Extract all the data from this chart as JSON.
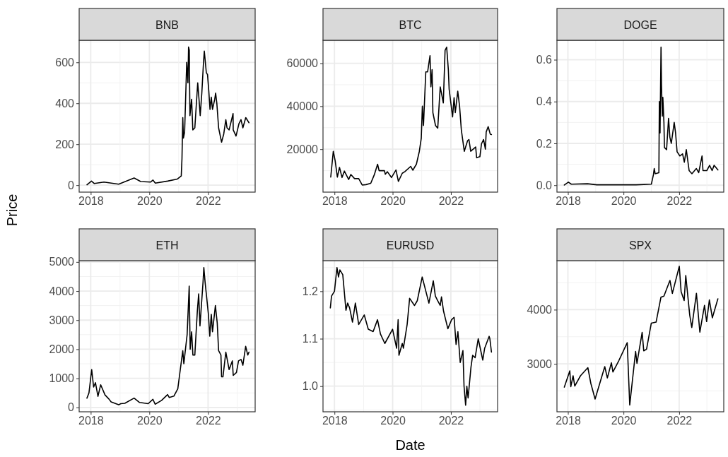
{
  "chart_data": [
    {
      "type": "line",
      "title": "BNB",
      "ylabel": "Price",
      "color": "#000000",
      "grid": true,
      "xlim": [
        "2017-08-10",
        "2023-08-10"
      ],
      "xticks": [
        "2018",
        "2020",
        "2022"
      ],
      "ylim": [
        -34,
        708
      ],
      "yticks": [
        0,
        200,
        400,
        600
      ],
      "x": [
        "2017-11-15",
        "2018-01-10",
        "2018-02-15",
        "2018-06-15",
        "2018-12-15",
        "2019-06-25",
        "2019-09-15",
        "2020-01-15",
        "2020-02-15",
        "2020-03-15",
        "2020-08-15",
        "2020-12-15",
        "2021-02-01",
        "2021-02-10",
        "2021-02-20",
        "2021-02-28",
        "2021-03-15",
        "2021-04-10",
        "2021-04-25",
        "2021-05-03",
        "2021-05-12",
        "2021-05-20",
        "2021-06-10",
        "2021-06-25",
        "2021-07-20",
        "2021-08-25",
        "2021-09-10",
        "2021-09-25",
        "2021-10-15",
        "2021-11-05",
        "2021-11-15",
        "2021-12-10",
        "2021-12-25",
        "2022-01-10",
        "2022-01-25",
        "2022-02-10",
        "2022-02-25",
        "2022-03-25",
        "2022-04-05",
        "2022-04-20",
        "2022-05-12",
        "2022-06-18",
        "2022-07-15",
        "2022-08-10",
        "2022-08-25",
        "2022-09-20",
        "2022-11-08",
        "2022-11-10",
        "2022-12-15",
        "2023-01-20",
        "2023-02-15",
        "2023-03-10",
        "2023-04-15",
        "2023-05-25"
      ],
      "values": [
        2,
        20,
        8,
        15,
        5,
        35,
        18,
        15,
        25,
        10,
        20,
        30,
        45,
        130,
        330,
        230,
        260,
        600,
        500,
        675,
        660,
        340,
        420,
        270,
        280,
        500,
        420,
        340,
        450,
        600,
        655,
        550,
        540,
        460,
        370,
        430,
        370,
        420,
        450,
        400,
        280,
        210,
        250,
        320,
        280,
        270,
        350,
        270,
        240,
        300,
        320,
        280,
        330,
        305
      ]
    },
    {
      "type": "line",
      "title": "BTC",
      "color": "#000000",
      "grid": true,
      "xlim": [
        "2017-08-10",
        "2023-08-10"
      ],
      "xticks": [
        "2018",
        "2020",
        "2022"
      ],
      "ylim": [
        0,
        70700
      ],
      "yticks": [
        20000,
        40000,
        60000
      ],
      "x": [
        "2017-11-15",
        "2017-12-17",
        "2018-01-10",
        "2018-02-06",
        "2018-03-05",
        "2018-04-06",
        "2018-05-05",
        "2018-06-28",
        "2018-07-25",
        "2018-09-10",
        "2018-11-01",
        "2018-12-15",
        "2019-02-01",
        "2019-04-01",
        "2019-05-15",
        "2019-06-26",
        "2019-07-15",
        "2019-09-20",
        "2019-10-01",
        "2019-10-27",
        "2019-12-17",
        "2020-02-12",
        "2020-03-13",
        "2020-05-01",
        "2020-06-01",
        "2020-08-15",
        "2020-09-10",
        "2020-10-25",
        "2020-12-01",
        "2020-12-25",
        "2021-01-08",
        "2021-01-22",
        "2021-02-20",
        "2021-03-15",
        "2021-04-14",
        "2021-04-25",
        "2021-05-10",
        "2021-05-20",
        "2021-06-22",
        "2021-07-20",
        "2021-08-20",
        "2021-09-10",
        "2021-09-28",
        "2021-10-20",
        "2021-11-09",
        "2021-11-30",
        "2021-12-10",
        "2022-01-22",
        "2022-02-10",
        "2022-02-25",
        "2022-03-28",
        "2022-04-20",
        "2022-05-12",
        "2022-06-18",
        "2022-07-30",
        "2022-08-15",
        "2022-09-07",
        "2022-11-08",
        "2022-11-20",
        "2022-12-31",
        "2023-01-20",
        "2023-02-15",
        "2023-03-10",
        "2023-03-20",
        "2023-04-14",
        "2023-05-10",
        "2023-05-25"
      ],
      "values": [
        7000,
        19000,
        14500,
        7000,
        11500,
        6800,
        9800,
        5900,
        8200,
        6300,
        6300,
        3300,
        3500,
        4100,
        8000,
        13000,
        10000,
        10000,
        8300,
        9500,
        6800,
        10300,
        5000,
        8800,
        9500,
        12000,
        10200,
        13000,
        19000,
        25000,
        40000,
        31000,
        56000,
        56000,
        63500,
        49000,
        57000,
        37000,
        31000,
        29800,
        49000,
        45000,
        41500,
        66000,
        67500,
        57000,
        48000,
        35000,
        44000,
        37000,
        47000,
        40000,
        29000,
        19000,
        24000,
        24500,
        19000,
        21000,
        16000,
        16500,
        22500,
        24500,
        20000,
        28000,
        30500,
        27000,
        26800
      ]
    },
    {
      "type": "line",
      "title": "DOGE",
      "color": "#000000",
      "grid": true,
      "xlim": [
        "2017-08-10",
        "2023-08-10"
      ],
      "xticks": [
        "2018",
        "2020",
        "2022"
      ],
      "ylim": [
        -0.033,
        0.693
      ],
      "yticks": [
        {
          "value": 0,
          "label": "0.0"
        },
        0.2,
        0.4,
        0.6
      ],
      "x": [
        "2017-11-15",
        "2018-01-07",
        "2018-02-15",
        "2018-09-15",
        "2019-01-15",
        "2020-06-15",
        "2021-01-01",
        "2021-01-28",
        "2021-02-08",
        "2021-02-20",
        "2021-04-10",
        "2021-04-16",
        "2021-04-25",
        "2021-05-08",
        "2021-05-14",
        "2021-05-25",
        "2021-06-01",
        "2021-06-15",
        "2021-06-22",
        "2021-07-20",
        "2021-08-15",
        "2021-09-01",
        "2021-09-20",
        "2021-10-28",
        "2021-11-15",
        "2021-12-05",
        "2022-01-10",
        "2022-02-15",
        "2022-03-10",
        "2022-04-05",
        "2022-05-12",
        "2022-06-18",
        "2022-08-15",
        "2022-09-15",
        "2022-10-29",
        "2022-11-10",
        "2022-12-30",
        "2023-02-05",
        "2023-03-10",
        "2023-04-05",
        "2023-05-25"
      ],
      "values": [
        0.001,
        0.015,
        0.005,
        0.007,
        0.002,
        0.002,
        0.005,
        0.05,
        0.08,
        0.055,
        0.06,
        0.4,
        0.25,
        0.66,
        0.48,
        0.33,
        0.42,
        0.3,
        0.18,
        0.17,
        0.32,
        0.23,
        0.2,
        0.3,
        0.25,
        0.16,
        0.14,
        0.15,
        0.11,
        0.17,
        0.07,
        0.055,
        0.08,
        0.06,
        0.14,
        0.07,
        0.07,
        0.095,
        0.07,
        0.095,
        0.073
      ]
    },
    {
      "type": "line",
      "title": "ETH",
      "color": "#000000",
      "grid": true,
      "xlim": [
        "2017-08-10",
        "2023-08-10"
      ],
      "xticks": [
        "2018",
        "2020",
        "2022"
      ],
      "ylim": [
        -150,
        5045
      ],
      "yticks": [
        0,
        1000,
        2000,
        3000,
        4000,
        5000
      ],
      "x": [
        "2017-11-15",
        "2017-12-10",
        "2018-01-13",
        "2018-02-06",
        "2018-03-01",
        "2018-04-01",
        "2018-05-05",
        "2018-06-28",
        "2018-08-15",
        "2018-09-12",
        "2018-12-15",
        "2019-01-10",
        "2019-03-01",
        "2019-06-25",
        "2019-09-01",
        "2019-12-17",
        "2020-02-14",
        "2020-03-13",
        "2020-06-01",
        "2020-08-15",
        "2020-09-05",
        "2020-11-01",
        "2020-12-20",
        "2021-01-20",
        "2021-02-20",
        "2021-03-05",
        "2021-04-15",
        "2021-05-11",
        "2021-05-23",
        "2021-06-10",
        "2021-06-26",
        "2021-07-20",
        "2021-08-20",
        "2021-09-06",
        "2021-09-22",
        "2021-10-30",
        "2021-11-09",
        "2021-11-25",
        "2021-12-10",
        "2022-01-05",
        "2022-01-22",
        "2022-02-10",
        "2022-02-25",
        "2022-04-02",
        "2022-04-25",
        "2022-05-12",
        "2022-06-10",
        "2022-06-18",
        "2022-07-05",
        "2022-08-10",
        "2022-09-20",
        "2022-10-30",
        "2022-11-10",
        "2022-12-20",
        "2023-01-15",
        "2023-02-15",
        "2023-03-10",
        "2023-04-14",
        "2023-05-10",
        "2023-05-25"
      ],
      "values": [
        320,
        500,
        1300,
        700,
        850,
        380,
        780,
        430,
        290,
        190,
        90,
        130,
        140,
        320,
        170,
        130,
        280,
        110,
        240,
        440,
        340,
        390,
        640,
        1300,
        1950,
        1500,
        2500,
        4170,
        2000,
        2600,
        1800,
        1800,
        3300,
        3900,
        2800,
        4300,
        4810,
        4300,
        3900,
        3200,
        2450,
        3200,
        2600,
        3500,
        2900,
        1950,
        1800,
        1050,
        1050,
        1900,
        1300,
        1600,
        1100,
        1200,
        1600,
        1650,
        1450,
        2100,
        1800,
        1900
      ]
    },
    {
      "type": "line",
      "title": "EURUSD",
      "xlabel": "Date",
      "color": "#000000",
      "grid": true,
      "xlim": [
        "2017-08-10",
        "2023-08-10"
      ],
      "xticks": [
        "2018",
        "2020",
        "2022"
      ],
      "ylim": [
        0.946,
        1.2645
      ],
      "yticks": [
        {
          "value": 1,
          "label": "1.0"
        },
        1.1,
        1.2
      ],
      "x": [
        "2017-11-10",
        "2017-11-25",
        "2018-01-01",
        "2018-02-01",
        "2018-02-20",
        "2018-03-10",
        "2018-04-15",
        "2018-05-25",
        "2018-06-15",
        "2018-07-10",
        "2018-08-15",
        "2018-09-20",
        "2018-11-01",
        "2019-01-10",
        "2019-03-01",
        "2019-05-01",
        "2019-06-25",
        "2019-08-01",
        "2019-09-25",
        "2019-12-31",
        "2020-02-20",
        "2020-03-10",
        "2020-03-20",
        "2020-05-01",
        "2020-05-15",
        "2020-07-01",
        "2020-08-01",
        "2020-10-01",
        "2020-11-05",
        "2021-01-06",
        "2021-03-31",
        "2021-05-25",
        "2021-06-20",
        "2021-07-20",
        "2021-08-20",
        "2021-09-05",
        "2021-10-01",
        "2021-11-24",
        "2022-01-10",
        "2022-02-10",
        "2022-03-07",
        "2022-03-30",
        "2022-04-28",
        "2022-06-01",
        "2022-06-15",
        "2022-07-05",
        "2022-07-20",
        "2022-08-05",
        "2022-09-10",
        "2022-10-01",
        "2022-11-01",
        "2022-12-10",
        "2023-02-05",
        "2023-03-01",
        "2023-04-26",
        "2023-05-05",
        "2023-05-25"
      ],
      "values": [
        1.165,
        1.19,
        1.2,
        1.25,
        1.23,
        1.245,
        1.235,
        1.16,
        1.175,
        1.165,
        1.135,
        1.175,
        1.13,
        1.15,
        1.12,
        1.115,
        1.14,
        1.11,
        1.09,
        1.12,
        1.08,
        1.14,
        1.065,
        1.09,
        1.08,
        1.13,
        1.185,
        1.17,
        1.18,
        1.23,
        1.175,
        1.222,
        1.19,
        1.18,
        1.17,
        1.188,
        1.158,
        1.121,
        1.14,
        1.145,
        1.088,
        1.115,
        1.05,
        1.075,
        1.0,
        0.96,
        1.0,
        0.975,
        1.04,
        1.065,
        1.06,
        1.1,
        1.055,
        1.08,
        1.105,
        1.1,
        1.072
      ]
    },
    {
      "type": "line",
      "title": "SPX",
      "color": "#000000",
      "grid": true,
      "xlim": [
        "2017-08-10",
        "2023-08-10"
      ],
      "xticks": [
        "2018",
        "2020",
        "2022"
      ],
      "ylim": [
        2115,
        4905
      ],
      "yticks": [
        3000,
        4000
      ],
      "x": [
        "2017-11-15",
        "2018-01-26",
        "2018-02-08",
        "2018-03-10",
        "2018-04-01",
        "2018-06-15",
        "2018-09-20",
        "2018-10-29",
        "2018-12-24",
        "2019-04-30",
        "2019-06-03",
        "2019-07-26",
        "2019-08-15",
        "2019-11-01",
        "2020-02-19",
        "2020-03-23",
        "2020-06-08",
        "2020-06-26",
        "2020-09-02",
        "2020-09-23",
        "2020-10-30",
        "2020-12-31",
        "2021-03-04",
        "2021-05-07",
        "2021-06-15",
        "2021-09-02",
        "2021-10-04",
        "2022-01-03",
        "2022-01-27",
        "2022-03-08",
        "2022-03-29",
        "2022-05-20",
        "2022-06-16",
        "2022-08-16",
        "2022-09-30",
        "2022-11-30",
        "2022-12-28",
        "2023-02-02",
        "2023-03-13",
        "2023-05-25"
      ],
      "values": [
        2570,
        2870,
        2580,
        2780,
        2590,
        2780,
        2930,
        2640,
        2350,
        2950,
        2740,
        3020,
        2850,
        3060,
        3390,
        2240,
        3230,
        3010,
        3580,
        3240,
        3270,
        3750,
        3770,
        4230,
        4250,
        4540,
        4300,
        4800,
        4330,
        4170,
        4630,
        3900,
        3670,
        4300,
        3585,
        4080,
        3780,
        4180,
        3850,
        4200
      ]
    }
  ]
}
